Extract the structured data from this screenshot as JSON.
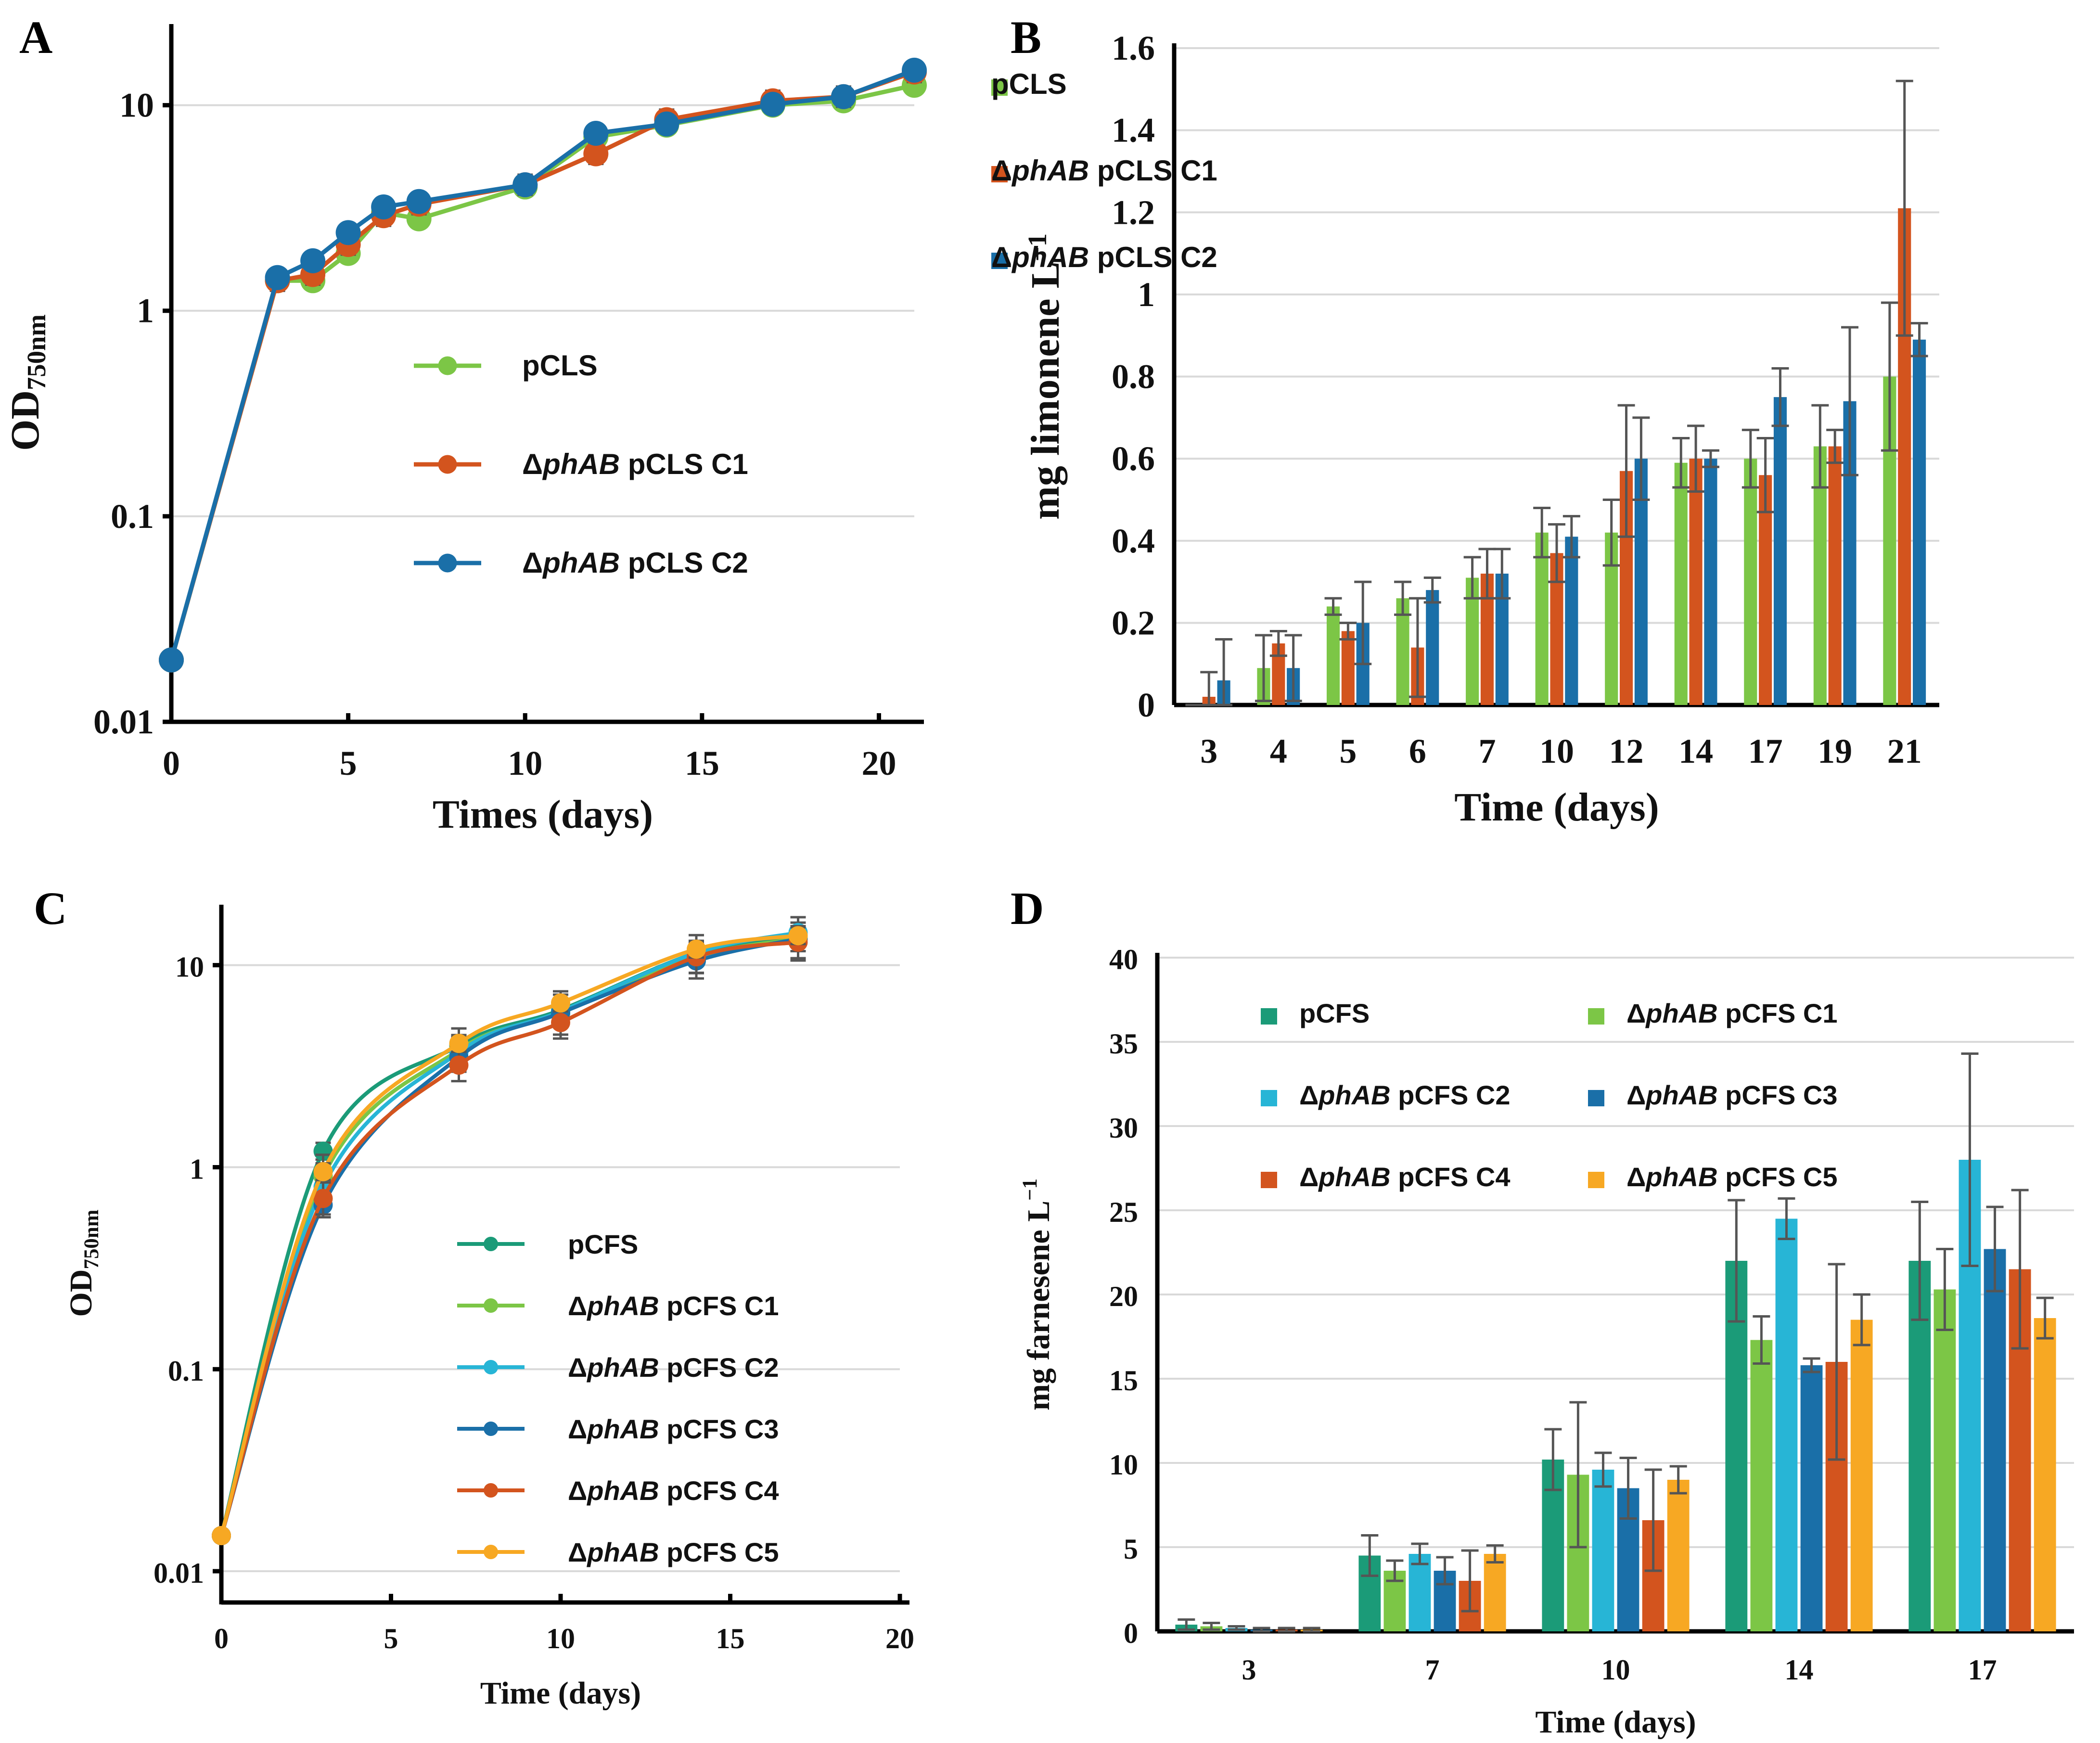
{
  "colors": {
    "green": "#7cc646",
    "red": "#d3541e",
    "blue": "#1a6fa8",
    "teal": "#1b9b78",
    "cyan": "#27b5d6",
    "orange": "#f7a823",
    "error": "#555555"
  },
  "chart_data": [
    {
      "panel": "A",
      "type": "line",
      "yscale": "log",
      "xlabel": "Times (days)",
      "ylabel_main": "OD",
      "ylabel_sub": "750nm",
      "xlim": [
        0,
        21
      ],
      "ylim": [
        0.01,
        20
      ],
      "xticks": [
        "0",
        "5",
        "10",
        "15",
        "20"
      ],
      "yticks": [
        "0.01",
        "0.1",
        "1",
        "10"
      ],
      "legend_location": "center-right",
      "series": [
        {
          "name": "pCLS",
          "name_prefix": "",
          "name_italic": "",
          "name_suffix": "pCLS",
          "color": "#7cc646",
          "x": [
            0,
            3,
            4,
            5,
            6,
            7,
            10,
            12,
            14,
            17,
            19,
            21
          ],
          "y": [
            0.02,
            1.4,
            1.4,
            1.9,
            3.0,
            2.8,
            4.0,
            7.0,
            8.0,
            10.0,
            10.5,
            12.5
          ]
        },
        {
          "name": "ΔphAB pCLS C1",
          "name_prefix": "Δ",
          "name_italic": "phAB",
          "name_suffix": " pCLS C1",
          "color": "#d3541e",
          "x": [
            0,
            3,
            4,
            5,
            6,
            7,
            10,
            12,
            14,
            17,
            19,
            21
          ],
          "y": [
            0.02,
            1.4,
            1.5,
            2.1,
            2.9,
            3.3,
            4.1,
            5.8,
            8.5,
            10.5,
            11.0,
            14.5
          ]
        },
        {
          "name": "ΔphAB pCLS C2",
          "name_prefix": "Δ",
          "name_italic": "phAB",
          "name_suffix": " pCLS C2",
          "color": "#1a6fa8",
          "x": [
            0,
            3,
            4,
            5,
            6,
            7,
            10,
            12,
            14,
            17,
            19,
            21
          ],
          "y": [
            0.02,
            1.45,
            1.75,
            2.4,
            3.2,
            3.4,
            4.1,
            7.3,
            8.1,
            10.1,
            11.0,
            14.8
          ]
        }
      ]
    },
    {
      "panel": "B",
      "type": "bar",
      "xlabel": "Time (days)",
      "ylabel": "mg limonene L",
      "ylabel_sup": "−1",
      "categories": [
        "3",
        "4",
        "5",
        "6",
        "7",
        "10",
        "12",
        "14",
        "17",
        "19",
        "21"
      ],
      "ylim": [
        0,
        1.6
      ],
      "yticks": [
        "0",
        "0.2",
        "0.4",
        "0.6",
        "0.8",
        "1",
        "1.2",
        "1.4",
        "1.6"
      ],
      "legend_location": "top-left",
      "series": [
        {
          "name": "pCLS",
          "name_prefix": "",
          "name_italic": "",
          "name_suffix": "pCLS",
          "color": "#7cc646",
          "values": [
            0.0,
            0.09,
            0.24,
            0.26,
            0.31,
            0.42,
            0.42,
            0.59,
            0.6,
            0.63,
            0.8
          ],
          "errors": [
            0.0,
            0.08,
            0.02,
            0.04,
            0.05,
            0.06,
            0.08,
            0.06,
            0.07,
            0.1,
            0.18
          ]
        },
        {
          "name": "ΔphAB pCLS C1",
          "name_prefix": "Δ",
          "name_italic": "phAB",
          "name_suffix": " pCLS C1",
          "color": "#d3541e",
          "values": [
            0.02,
            0.15,
            0.18,
            0.14,
            0.32,
            0.37,
            0.57,
            0.6,
            0.56,
            0.63,
            1.21
          ],
          "errors": [
            0.06,
            0.03,
            0.02,
            0.12,
            0.06,
            0.07,
            0.16,
            0.08,
            0.09,
            0.04,
            0.31
          ]
        },
        {
          "name": "ΔphAB pCLS C2",
          "name_prefix": "Δ",
          "name_italic": "phAB",
          "name_suffix": " pCLS C2",
          "color": "#1a6fa8",
          "values": [
            0.06,
            0.09,
            0.2,
            0.28,
            0.32,
            0.41,
            0.6,
            0.6,
            0.75,
            0.74,
            0.89
          ],
          "errors": [
            0.1,
            0.08,
            0.1,
            0.03,
            0.06,
            0.05,
            0.1,
            0.02,
            0.07,
            0.18,
            0.04
          ]
        }
      ]
    },
    {
      "panel": "C",
      "type": "line",
      "yscale": "log",
      "xlabel": "Time (days)",
      "ylabel_main": "OD",
      "ylabel_sub": "750nm",
      "xlim": [
        0,
        20
      ],
      "ylim": [
        0.007,
        16
      ],
      "xticks": [
        "0",
        "5",
        "10",
        "15",
        "20"
      ],
      "yticks": [
        "0.01",
        "0.1",
        "1",
        "10"
      ],
      "legend_location": "center-right",
      "series": [
        {
          "name": "pCFS",
          "name_prefix": "",
          "name_italic": "",
          "name_suffix": "pCFS",
          "color": "#1b9b78",
          "x": [
            0,
            3,
            7,
            10,
            14,
            17
          ],
          "y": [
            0.015,
            1.2,
            4.0,
            6.0,
            11.5,
            14.0
          ]
        },
        {
          "name": "ΔphAB pCFS C1",
          "name_prefix": "Δ",
          "name_italic": "phAB",
          "name_suffix": " pCFS C1",
          "color": "#7cc646",
          "x": [
            0,
            3,
            7,
            10,
            14,
            17
          ],
          "y": [
            0.015,
            0.9,
            3.8,
            5.8,
            11.0,
            13.5
          ]
        },
        {
          "name": "ΔphAB pCFS C2",
          "name_prefix": "Δ",
          "name_italic": "phAB",
          "name_suffix": " pCFS C2",
          "color": "#27b5d6",
          "x": [
            0,
            3,
            7,
            10,
            14,
            17
          ],
          "y": [
            0.015,
            0.8,
            3.7,
            5.9,
            11.5,
            14.5
          ]
        },
        {
          "name": "ΔphAB pCFS C3",
          "name_prefix": "Δ",
          "name_italic": "phAB",
          "name_suffix": " pCFS C3",
          "color": "#1a6fa8",
          "x": [
            0,
            3,
            7,
            10,
            14,
            17
          ],
          "y": [
            0.015,
            0.65,
            3.5,
            5.8,
            10.5,
            13.5
          ]
        },
        {
          "name": "ΔphAB pCFS C4",
          "name_prefix": "Δ",
          "name_italic": "phAB",
          "name_suffix": " pCFS C4",
          "color": "#d3541e",
          "x": [
            0,
            3,
            7,
            10,
            14,
            17
          ],
          "y": [
            0.015,
            0.7,
            3.2,
            5.2,
            11.0,
            13.0
          ]
        },
        {
          "name": "ΔphAB pCFS C5",
          "name_prefix": "Δ",
          "name_italic": "phAB",
          "name_suffix": " pCFS C5",
          "color": "#f7a823",
          "x": [
            0,
            3,
            7,
            10,
            14,
            17
          ],
          "y": [
            0.015,
            0.95,
            4.1,
            6.5,
            12.0,
            14.0
          ]
        }
      ]
    },
    {
      "panel": "D",
      "type": "bar",
      "xlabel": "Time (days)",
      "ylabel": "mg farnesene L",
      "ylabel_sup": "−1",
      "categories": [
        "3",
        "7",
        "10",
        "14",
        "17"
      ],
      "ylim": [
        0,
        40
      ],
      "yticks": [
        "0",
        "5",
        "10",
        "15",
        "20",
        "25",
        "30",
        "35",
        "40"
      ],
      "legend_location": "top",
      "series": [
        {
          "name": "pCFS",
          "name_prefix": "",
          "name_italic": "",
          "name_suffix": "pCFS",
          "color": "#1b9b78",
          "values": [
            0.4,
            4.5,
            10.2,
            22.0,
            22.0
          ],
          "errors": [
            0.3,
            1.2,
            1.8,
            3.6,
            3.5
          ]
        },
        {
          "name": "ΔphAB pCFS C1",
          "name_prefix": "Δ",
          "name_italic": "phAB",
          "name_suffix": " pCFS C1",
          "color": "#7cc646",
          "values": [
            0.3,
            3.6,
            9.3,
            17.3,
            20.3
          ],
          "errors": [
            0.2,
            0.6,
            4.3,
            1.4,
            2.4
          ]
        },
        {
          "name": "ΔphAB pCFS C2",
          "name_prefix": "Δ",
          "name_italic": "phAB",
          "name_suffix": " pCFS C2",
          "color": "#27b5d6",
          "values": [
            0.2,
            4.6,
            9.6,
            24.5,
            28.0
          ],
          "errors": [
            0.1,
            0.6,
            1.0,
            1.2,
            6.3
          ]
        },
        {
          "name": "ΔphAB pCFS C3",
          "name_prefix": "Δ",
          "name_italic": "phAB",
          "name_suffix": " pCFS C3",
          "color": "#1a6fa8",
          "values": [
            0.1,
            3.6,
            8.5,
            15.8,
            22.7
          ],
          "errors": [
            0.1,
            0.8,
            1.8,
            0.4,
            2.5
          ]
        },
        {
          "name": "ΔphAB pCFS C4",
          "name_prefix": "Δ",
          "name_italic": "phAB",
          "name_suffix": " pCFS C4",
          "color": "#d3541e",
          "values": [
            0.1,
            3.0,
            6.6,
            16.0,
            21.5
          ],
          "errors": [
            0.1,
            1.8,
            3.0,
            5.8,
            4.7
          ]
        },
        {
          "name": "ΔphAB pCFS C5",
          "name_prefix": "Δ",
          "name_italic": "phAB",
          "name_suffix": " pCFS C5",
          "color": "#f7a823",
          "values": [
            0.1,
            4.6,
            9.0,
            18.5,
            18.6
          ],
          "errors": [
            0.1,
            0.5,
            0.8,
            1.5,
            1.2
          ]
        }
      ]
    }
  ]
}
